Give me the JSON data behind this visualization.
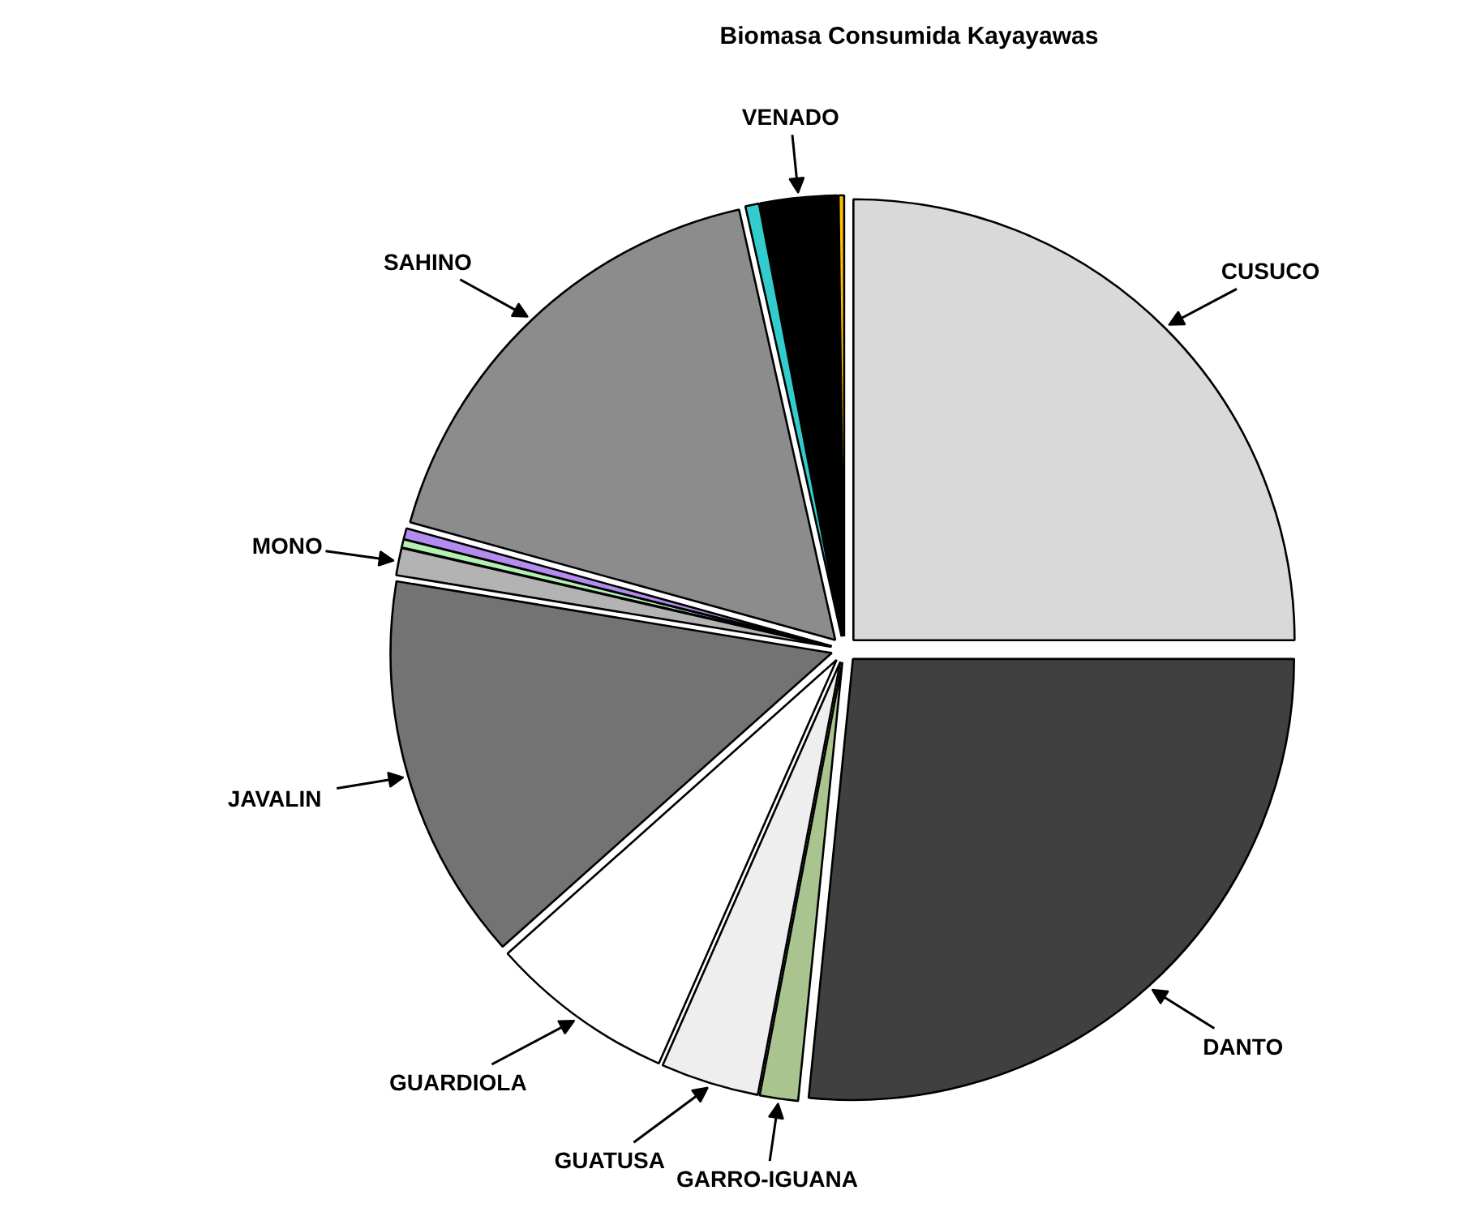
{
  "chart_data": {
    "type": "pie",
    "title": "Biomasa Consumida Kayayawas",
    "categories": [
      "CUSUCO",
      "DANTO",
      "GARRO-IGUANA",
      "GUATUSA",
      "GUARDIOLA",
      "JAVALIN",
      "MONO",
      null,
      null,
      "SAHINO",
      null,
      "VENADO",
      null
    ],
    "values": [
      25,
      26.6,
      1.4,
      3.6,
      6.8,
      14.2,
      1.0,
      0.3,
      0.4,
      17.2,
      0.5,
      2.8,
      0.2
    ],
    "colors": [
      "#d9d9d9",
      "#404040",
      "#a9c48f",
      "#eeeeee",
      "#ffffff",
      "#737373",
      "#b3b3b3",
      "#b3f0b3",
      "#b48cf0",
      "#8c8c8c",
      "#33cccc",
      "#000000",
      "#ffc000"
    ]
  }
}
